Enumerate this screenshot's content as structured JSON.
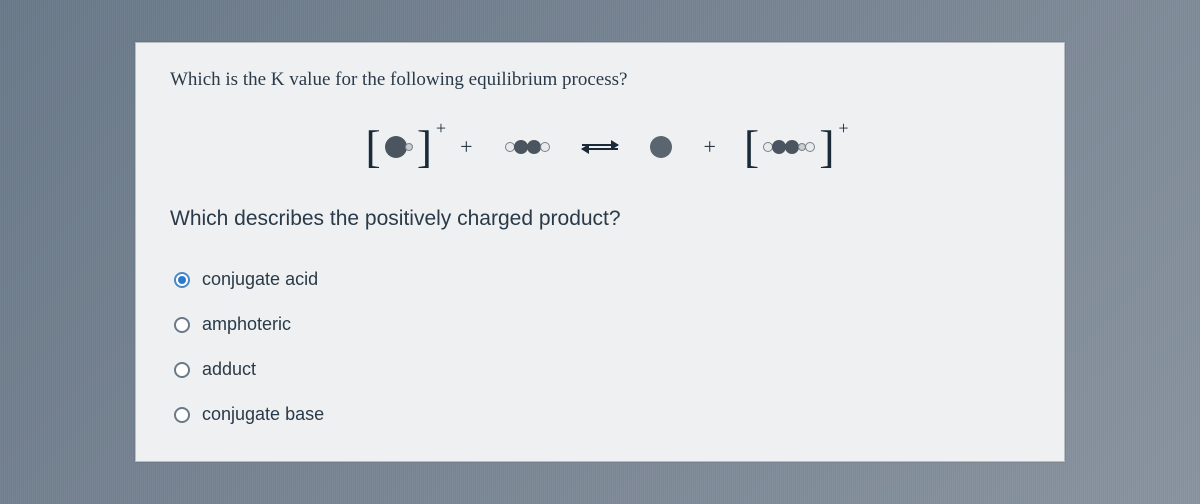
{
  "question_top": "Which is the K value for the following equilibrium process?",
  "question_sub": "Which describes the positively charged product?",
  "options": [
    {
      "label": "conjugate acid",
      "selected": true
    },
    {
      "label": "amphoteric",
      "selected": false
    },
    {
      "label": "adduct",
      "selected": false
    },
    {
      "label": "conjugate base",
      "selected": false
    }
  ],
  "equation": {
    "left_bracket_charge": "+",
    "right_bracket_charge": "+"
  },
  "colors": {
    "card_bg": "#eef0f2",
    "text": "#2a3a48",
    "radio_selected": "#2a78d0"
  }
}
